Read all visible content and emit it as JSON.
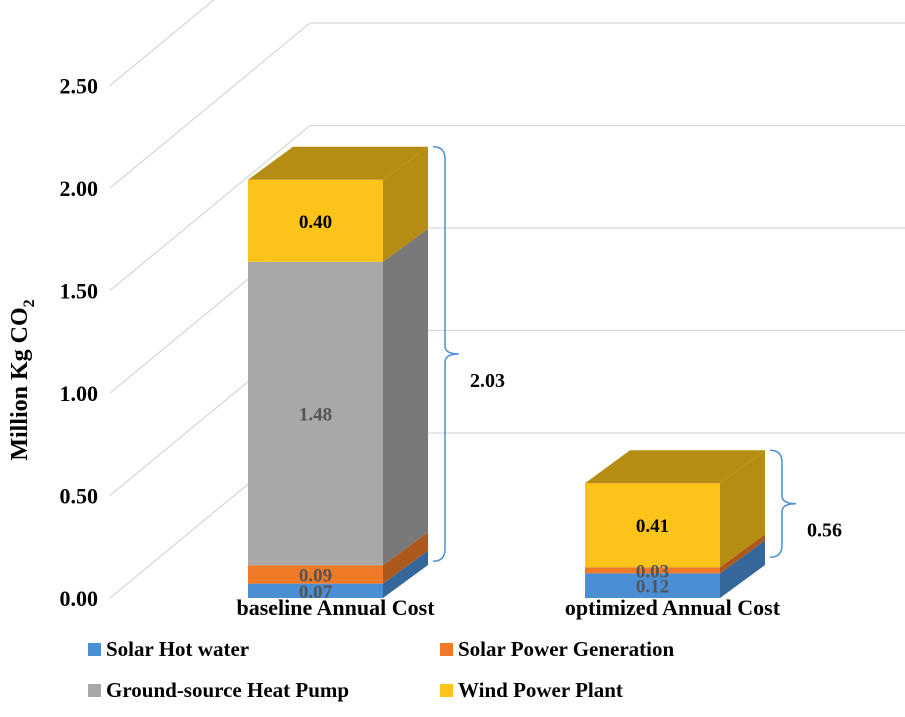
{
  "chart_data": {
    "type": "bar",
    "stacked": true,
    "style": "3d",
    "categories": [
      "baseline Annual Cost",
      "optimized Annual Cost"
    ],
    "series": [
      {
        "name": "Solar Hot water",
        "values": [
          0.07,
          0.12
        ],
        "color": "#4a8fd6"
      },
      {
        "name": "Solar  Power Generation",
        "values": [
          0.09,
          0.03
        ],
        "color": "#f07a28"
      },
      {
        "name": "Ground-source Heat Pump",
        "values": [
          1.48,
          0
        ],
        "color": "#a8a8a8"
      },
      {
        "name": "Wind Power Plant",
        "values": [
          0.4,
          0.41
        ],
        "color": "#fcc419"
      }
    ],
    "totals": [
      "2.03",
      "0.56"
    ],
    "data_labels": [
      [
        "0.07",
        "0.09",
        "1.48",
        "0.40"
      ],
      [
        "0.12",
        "0.03",
        "",
        "0.41"
      ]
    ],
    "ylabel_main": "Million  Kg CO",
    "ylabel_sub": "2",
    "ylim": [
      0,
      2.5
    ],
    "yticks": [
      "0.00",
      "0.50",
      "1.00",
      "1.50",
      "2.00",
      "2.50"
    ],
    "legend_position": "bottom",
    "grid": true
  }
}
